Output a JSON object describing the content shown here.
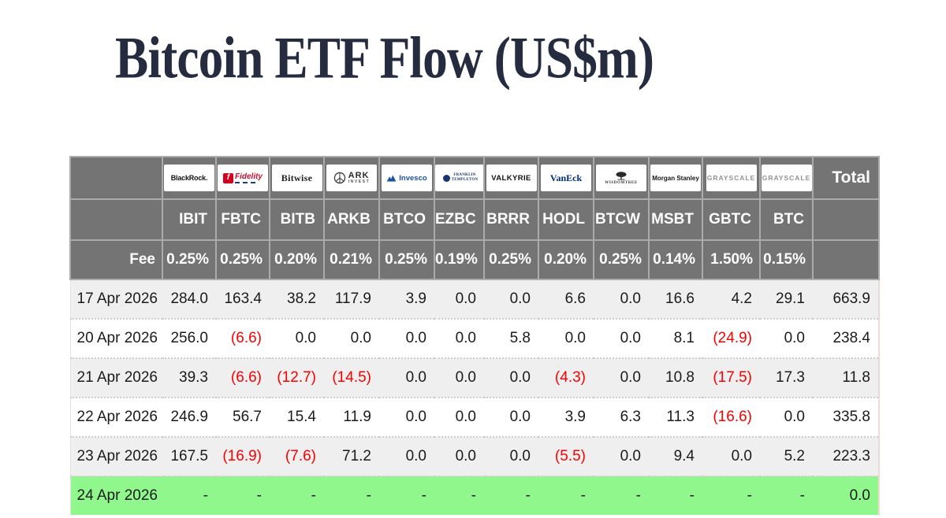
{
  "title": "Bitcoin ETF Flow (US$m)",
  "colors": {
    "title_navy": "#262c3f",
    "header_grey": "#747474",
    "row_alt_grey": "#efefef",
    "highlight_green": "#8ff78c",
    "negative_red": "#fb0000",
    "fidelity_red": "#d6001c",
    "invesco_blue": "#1c52a3",
    "vaneck_navy": "#002a7c"
  },
  "logos": {
    "blackrock": "BlackRock.",
    "fidelity_f": "f",
    "fidelity": "Fidelity",
    "bitwise": "Bitwise",
    "ark": "ARK",
    "ark_sub": "INVEST",
    "invesco": "Invesco",
    "franklin_line1": "FRANKLIN",
    "franklin_line2": "TEMPLETON",
    "valkyrie": "VALKYRIE",
    "vaneck": "VanEck",
    "wisdomtree": "WISDOMTREE",
    "morgan_stanley": "Morgan Stanley",
    "grayscale": "GRAYSCALE"
  },
  "chart_data": {
    "type": "table",
    "title": "Bitcoin ETF Flow (US$m)",
    "fee_label": "Fee",
    "total_label": "Total",
    "columns": [
      {
        "provider": "BlackRock",
        "ticker": "IBIT",
        "fee": "0.25%"
      },
      {
        "provider": "Fidelity",
        "ticker": "FBTC",
        "fee": "0.25%"
      },
      {
        "provider": "Bitwise",
        "ticker": "BITB",
        "fee": "0.20%"
      },
      {
        "provider": "ARK Invest",
        "ticker": "ARKB",
        "fee": "0.21%"
      },
      {
        "provider": "Invesco",
        "ticker": "BTCO",
        "fee": "0.25%"
      },
      {
        "provider": "Franklin Templeton",
        "ticker": "EZBC",
        "fee": "0.19%"
      },
      {
        "provider": "Valkyrie",
        "ticker": "BRRR",
        "fee": "0.25%"
      },
      {
        "provider": "VanEck",
        "ticker": "HODL",
        "fee": "0.20%"
      },
      {
        "provider": "WisdomTree",
        "ticker": "BTCW",
        "fee": "0.25%"
      },
      {
        "provider": "Morgan Stanley",
        "ticker": "MSBT",
        "fee": "0.14%"
      },
      {
        "provider": "Grayscale",
        "ticker": "GBTC",
        "fee": "1.50%"
      },
      {
        "provider": "Grayscale",
        "ticker": "BTC",
        "fee": "0.15%"
      }
    ],
    "rows": [
      {
        "date": "17 Apr 2026",
        "values": [
          "284.0",
          "163.4",
          "38.2",
          "117.9",
          "3.9",
          "0.0",
          "0.0",
          "6.6",
          "0.0",
          "16.6",
          "4.2",
          "29.1"
        ],
        "total": "663.9",
        "highlight": false
      },
      {
        "date": "20 Apr 2026",
        "values": [
          "256.0",
          "(6.6)",
          "0.0",
          "0.0",
          "0.0",
          "0.0",
          "5.8",
          "0.0",
          "0.0",
          "8.1",
          "(24.9)",
          "0.0"
        ],
        "total": "238.4",
        "highlight": false
      },
      {
        "date": "21 Apr 2026",
        "values": [
          "39.3",
          "(6.6)",
          "(12.7)",
          "(14.5)",
          "0.0",
          "0.0",
          "0.0",
          "(4.3)",
          "0.0",
          "10.8",
          "(17.5)",
          "17.3"
        ],
        "total": "11.8",
        "highlight": false
      },
      {
        "date": "22 Apr 2026",
        "values": [
          "246.9",
          "56.7",
          "15.4",
          "11.9",
          "0.0",
          "0.0",
          "0.0",
          "3.9",
          "6.3",
          "11.3",
          "(16.6)",
          "0.0"
        ],
        "total": "335.8",
        "highlight": false
      },
      {
        "date": "23 Apr 2026",
        "values": [
          "167.5",
          "(16.9)",
          "(7.6)",
          "71.2",
          "0.0",
          "0.0",
          "0.0",
          "(5.5)",
          "0.0",
          "9.4",
          "0.0",
          "5.2"
        ],
        "total": "223.3",
        "highlight": false
      },
      {
        "date": "24 Apr 2026",
        "values": [
          "-",
          "-",
          "-",
          "-",
          "-",
          "-",
          "-",
          "-",
          "-",
          "-",
          "-",
          "-"
        ],
        "total": "0.0",
        "highlight": true
      }
    ]
  }
}
